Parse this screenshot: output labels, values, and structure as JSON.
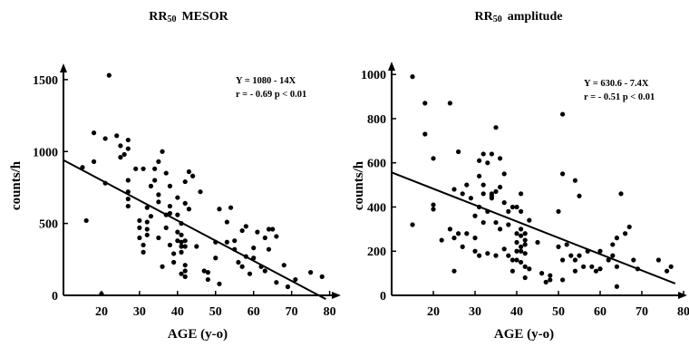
{
  "chart_data": [
    {
      "type": "scatter",
      "title_main": "RR",
      "title_sub": "50",
      "title_rest": "MESOR",
      "xlabel": "AGE (y-o)",
      "ylabel": "counts/h",
      "xlim": [
        10,
        82
      ],
      "ylim": [
        0,
        1600
      ],
      "xticks": [
        "20",
        "30",
        "40",
        "50",
        "60",
        "70",
        "80"
      ],
      "yticks": [
        "0",
        "500",
        "1000",
        "1500"
      ],
      "equation": "Y = 1080 - 14X",
      "stats": "r = - 0.69   p < 0.01",
      "regression": {
        "intercept": 1080,
        "slope": -14,
        "x_from": 10,
        "x_to": 79
      },
      "points": [
        [
          15,
          890
        ],
        [
          16,
          520
        ],
        [
          18,
          1130
        ],
        [
          18,
          930
        ],
        [
          20,
          10
        ],
        [
          21,
          1090
        ],
        [
          21,
          780
        ],
        [
          22,
          1530
        ],
        [
          24,
          1110
        ],
        [
          25,
          960
        ],
        [
          25,
          1040
        ],
        [
          26,
          980
        ],
        [
          27,
          1080
        ],
        [
          27,
          1020
        ],
        [
          27,
          800
        ],
        [
          27,
          720
        ],
        [
          27,
          670
        ],
        [
          27,
          620
        ],
        [
          29,
          880
        ],
        [
          30,
          470
        ],
        [
          30,
          520
        ],
        [
          30,
          400
        ],
        [
          31,
          880
        ],
        [
          31,
          350
        ],
        [
          31,
          300
        ],
        [
          32,
          610
        ],
        [
          32,
          510
        ],
        [
          32,
          460
        ],
        [
          32,
          420
        ],
        [
          33,
          760
        ],
        [
          33,
          550
        ],
        [
          34,
          880
        ],
        [
          34,
          800
        ],
        [
          35,
          930
        ],
        [
          35,
          700
        ],
        [
          35,
          650
        ],
        [
          35,
          400
        ],
        [
          36,
          1000
        ],
        [
          36,
          200
        ],
        [
          37,
          850
        ],
        [
          37,
          560
        ],
        [
          37,
          470
        ],
        [
          38,
          760
        ],
        [
          38,
          620
        ],
        [
          38,
          570
        ],
        [
          38,
          350
        ],
        [
          39,
          290
        ],
        [
          39,
          230
        ],
        [
          40,
          680
        ],
        [
          40,
          560
        ],
        [
          40,
          440
        ],
        [
          40,
          380
        ],
        [
          41,
          500
        ],
        [
          41,
          420
        ],
        [
          41,
          370
        ],
        [
          41,
          340
        ],
        [
          41,
          300
        ],
        [
          41,
          150
        ],
        [
          42,
          790
        ],
        [
          42,
          640
        ],
        [
          42,
          380
        ],
        [
          42,
          340
        ],
        [
          42,
          210
        ],
        [
          42,
          170
        ],
        [
          42,
          130
        ],
        [
          43,
          860
        ],
        [
          43,
          600
        ],
        [
          44,
          830
        ],
        [
          45,
          340
        ],
        [
          46,
          720
        ],
        [
          47,
          170
        ],
        [
          48,
          160
        ],
        [
          48,
          110
        ],
        [
          50,
          370
        ],
        [
          50,
          260
        ],
        [
          51,
          600
        ],
        [
          51,
          80
        ],
        [
          53,
          510
        ],
        [
          53,
          370
        ],
        [
          54,
          610
        ],
        [
          55,
          380
        ],
        [
          55,
          320
        ],
        [
          56,
          230
        ],
        [
          57,
          450
        ],
        [
          57,
          200
        ],
        [
          58,
          480
        ],
        [
          58,
          270
        ],
        [
          59,
          150
        ],
        [
          60,
          330
        ],
        [
          60,
          260
        ],
        [
          61,
          440
        ],
        [
          62,
          200
        ],
        [
          63,
          400
        ],
        [
          63,
          170
        ],
        [
          64,
          320
        ],
        [
          64,
          460
        ],
        [
          65,
          460
        ],
        [
          66,
          410
        ],
        [
          66,
          90
        ],
        [
          68,
          210
        ],
        [
          69,
          60
        ],
        [
          71,
          110
        ],
        [
          75,
          160
        ],
        [
          78,
          130
        ]
      ]
    },
    {
      "type": "scatter",
      "title_main": "RR",
      "title_sub": "50",
      "title_rest": "amplitude",
      "xlabel": "AGE (y-o)",
      "ylabel": "counts/h",
      "xlim": [
        10,
        80
      ],
      "ylim": [
        0,
        1050
      ],
      "xticks": [
        "20",
        "30",
        "40",
        "50",
        "60",
        "70",
        "80"
      ],
      "yticks": [
        "0",
        "200",
        "400",
        "600",
        "800",
        "1000"
      ],
      "equation": "Y = 630.6 - 7.4X",
      "stats": "r = - 0.51   p < 0.01",
      "regression": {
        "intercept": 630.6,
        "slope": -7.4,
        "x_from": 10,
        "x_to": 78
      },
      "points": [
        [
          15,
          990
        ],
        [
          15,
          320
        ],
        [
          18,
          870
        ],
        [
          18,
          730
        ],
        [
          20,
          390
        ],
        [
          20,
          410
        ],
        [
          20,
          620
        ],
        [
          22,
          250
        ],
        [
          24,
          870
        ],
        [
          24,
          300
        ],
        [
          25,
          480
        ],
        [
          25,
          260
        ],
        [
          25,
          110
        ],
        [
          26,
          650
        ],
        [
          26,
          280
        ],
        [
          27,
          460
        ],
        [
          27,
          220
        ],
        [
          28,
          500
        ],
        [
          28,
          280
        ],
        [
          29,
          440
        ],
        [
          30,
          360
        ],
        [
          30,
          260
        ],
        [
          30,
          200
        ],
        [
          31,
          610
        ],
        [
          31,
          540
        ],
        [
          31,
          400
        ],
        [
          31,
          180
        ],
        [
          32,
          640
        ],
        [
          32,
          500
        ],
        [
          32,
          460
        ],
        [
          32,
          330
        ],
        [
          33,
          600
        ],
        [
          33,
          380
        ],
        [
          33,
          190
        ],
        [
          34,
          640
        ],
        [
          34,
          460
        ],
        [
          34,
          450
        ],
        [
          34,
          440
        ],
        [
          35,
          760
        ],
        [
          35,
          470
        ],
        [
          35,
          330
        ],
        [
          35,
          180
        ],
        [
          36,
          620
        ],
        [
          36,
          490
        ],
        [
          36,
          300
        ],
        [
          37,
          550
        ],
        [
          37,
          420
        ],
        [
          37,
          210
        ],
        [
          38,
          380
        ],
        [
          38,
          320
        ],
        [
          38,
          180
        ],
        [
          39,
          400
        ],
        [
          39,
          160
        ],
        [
          39,
          110
        ],
        [
          40,
          400
        ],
        [
          40,
          280
        ],
        [
          40,
          240
        ],
        [
          40,
          200
        ],
        [
          40,
          160
        ],
        [
          41,
          460
        ],
        [
          41,
          380
        ],
        [
          41,
          300
        ],
        [
          41,
          270
        ],
        [
          41,
          220
        ],
        [
          41,
          200
        ],
        [
          41,
          150
        ],
        [
          42,
          280
        ],
        [
          42,
          250
        ],
        [
          42,
          230
        ],
        [
          42,
          190
        ],
        [
          42,
          130
        ],
        [
          42,
          80
        ],
        [
          43,
          340
        ],
        [
          43,
          120
        ],
        [
          45,
          240
        ],
        [
          46,
          100
        ],
        [
          47,
          60
        ],
        [
          48,
          70
        ],
        [
          48,
          90
        ],
        [
          50,
          380
        ],
        [
          50,
          220
        ],
        [
          51,
          820
        ],
        [
          51,
          550
        ],
        [
          51,
          160
        ],
        [
          51,
          70
        ],
        [
          52,
          230
        ],
        [
          53,
          180
        ],
        [
          54,
          520
        ],
        [
          54,
          160
        ],
        [
          54,
          110
        ],
        [
          55,
          180
        ],
        [
          55,
          450
        ],
        [
          56,
          130
        ],
        [
          57,
          200
        ],
        [
          58,
          130
        ],
        [
          59,
          110
        ],
        [
          60,
          200
        ],
        [
          60,
          120
        ],
        [
          62,
          160
        ],
        [
          63,
          230
        ],
        [
          63,
          180
        ],
        [
          64,
          260
        ],
        [
          64,
          130
        ],
        [
          64,
          40
        ],
        [
          65,
          460
        ],
        [
          66,
          280
        ],
        [
          67,
          310
        ],
        [
          68,
          160
        ],
        [
          69,
          120
        ],
        [
          74,
          160
        ],
        [
          76,
          110
        ],
        [
          77,
          130
        ]
      ]
    }
  ]
}
